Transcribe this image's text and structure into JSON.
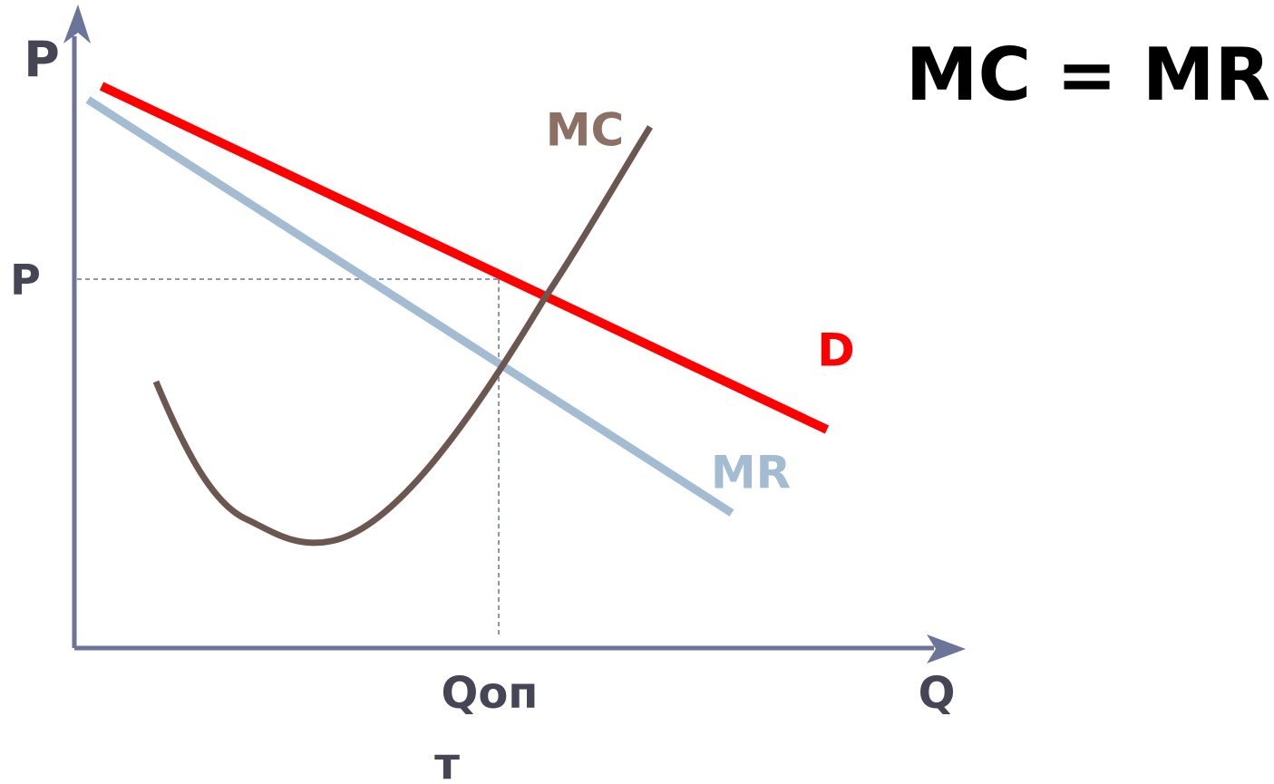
{
  "title": "MC = MR",
  "axes": {
    "y": "P",
    "x": "Q"
  },
  "curves": [
    {
      "label": "D"
    },
    {
      "label": "MR"
    },
    {
      "label": "MC"
    }
  ],
  "guides": {
    "price": "P",
    "quantity": [
      "Qоп",
      "т"
    ]
  }
}
